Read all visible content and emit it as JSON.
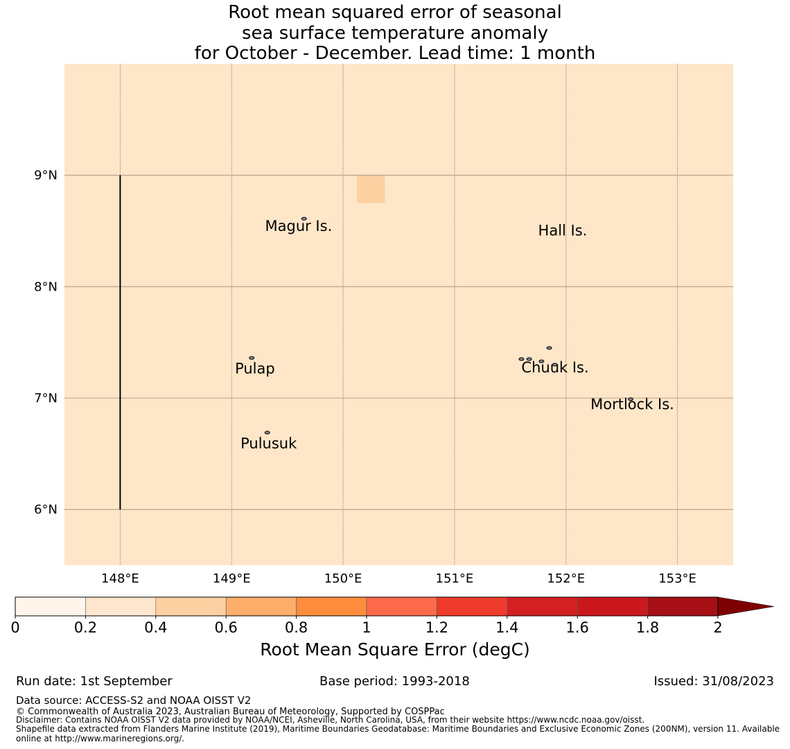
{
  "title": {
    "line1": "Root mean squared error of seasonal",
    "line2": "sea surface temperature anomaly",
    "line3": "for October - December. Lead time: 1 month"
  },
  "map": {
    "background_color": "#fee6c8",
    "lon_range": [
      147.5,
      153.5
    ],
    "lat_range": [
      5.5,
      10.0
    ],
    "lon_ticks": [
      148,
      149,
      150,
      151,
      152,
      153
    ],
    "lon_tick_labels": [
      "148°E",
      "149°E",
      "150°E",
      "151°E",
      "152°E",
      "153°E"
    ],
    "lat_ticks": [
      6,
      7,
      8,
      9
    ],
    "lat_tick_labels": [
      "6°N",
      "7°N",
      "8°N",
      "9°N"
    ],
    "cells": [
      {
        "lon0": 150.125,
        "lon1": 150.375,
        "lat0": 8.75,
        "lat1": 9.0,
        "value": 0.5
      }
    ],
    "boundary_line": {
      "lon": 148.0,
      "lat0": 6.0,
      "lat1": 9.0
    },
    "places": [
      {
        "name": "Magur Is.",
        "lon": 149.3,
        "lat": 8.5
      },
      {
        "name": "Hall Is.",
        "lon": 151.75,
        "lat": 8.46
      },
      {
        "name": "Pulap",
        "lon": 149.03,
        "lat": 7.22
      },
      {
        "name": "Chuuk Is.",
        "lon": 151.6,
        "lat": 7.23
      },
      {
        "name": "Mortlock Is.",
        "lon": 152.22,
        "lat": 6.9
      },
      {
        "name": "Pulusuk",
        "lon": 149.08,
        "lat": 6.55
      }
    ],
    "islands": [
      {
        "lon": 149.65,
        "lat": 8.61
      },
      {
        "lon": 149.18,
        "lat": 7.36
      },
      {
        "lon": 149.32,
        "lat": 6.69
      },
      {
        "lon": 151.85,
        "lat": 7.45
      },
      {
        "lon": 151.6,
        "lat": 7.35
      },
      {
        "lon": 151.67,
        "lat": 7.35
      },
      {
        "lon": 151.78,
        "lat": 7.33
      },
      {
        "lon": 151.9,
        "lat": 7.3
      },
      {
        "lon": 152.58,
        "lat": 6.99
      }
    ]
  },
  "colorbar": {
    "ticks": [
      "0",
      "0.2",
      "0.4",
      "0.6",
      "0.8",
      "1",
      "1.2",
      "1.4",
      "1.6",
      "1.8",
      "2"
    ],
    "colors": [
      "#fff5eb",
      "#fee6ce",
      "#fdd0a2",
      "#fdae6b",
      "#fd8d3c",
      "#fb6a4a",
      "#ef3b2c",
      "#d42020",
      "#cb181d",
      "#a50f15"
    ],
    "extend_color": "#7f0000",
    "label": "Root Mean Square Error (degC)"
  },
  "footer": {
    "run_date": "Run date: 1st September",
    "base_period": "Base period: 1993-2018",
    "issued": "Issued: 31/08/2023",
    "data_source": "Data source: ACCESS-S2 and NOAA OISST V2",
    "copyright": "© Commonwealth of Australia 2023, Australian Bureau of Meteorology, Supported by COSPPac",
    "disclaimer": "Disclaimer: Contains NOAA OISST V2 data provided by NOAA/NCEI, Asheville, North Carolina, USA, from their website https://www.ncdc.noaa.gov/oisst.",
    "shapefile": "Shapefile data extracted from Flanders Marine Institute (2019), Maritime Boundaries Geodatabase: Maritime Boundaries and Exclusive Economic Zones (200NM), version 11. Available online at http://www.marineregions.org/."
  }
}
